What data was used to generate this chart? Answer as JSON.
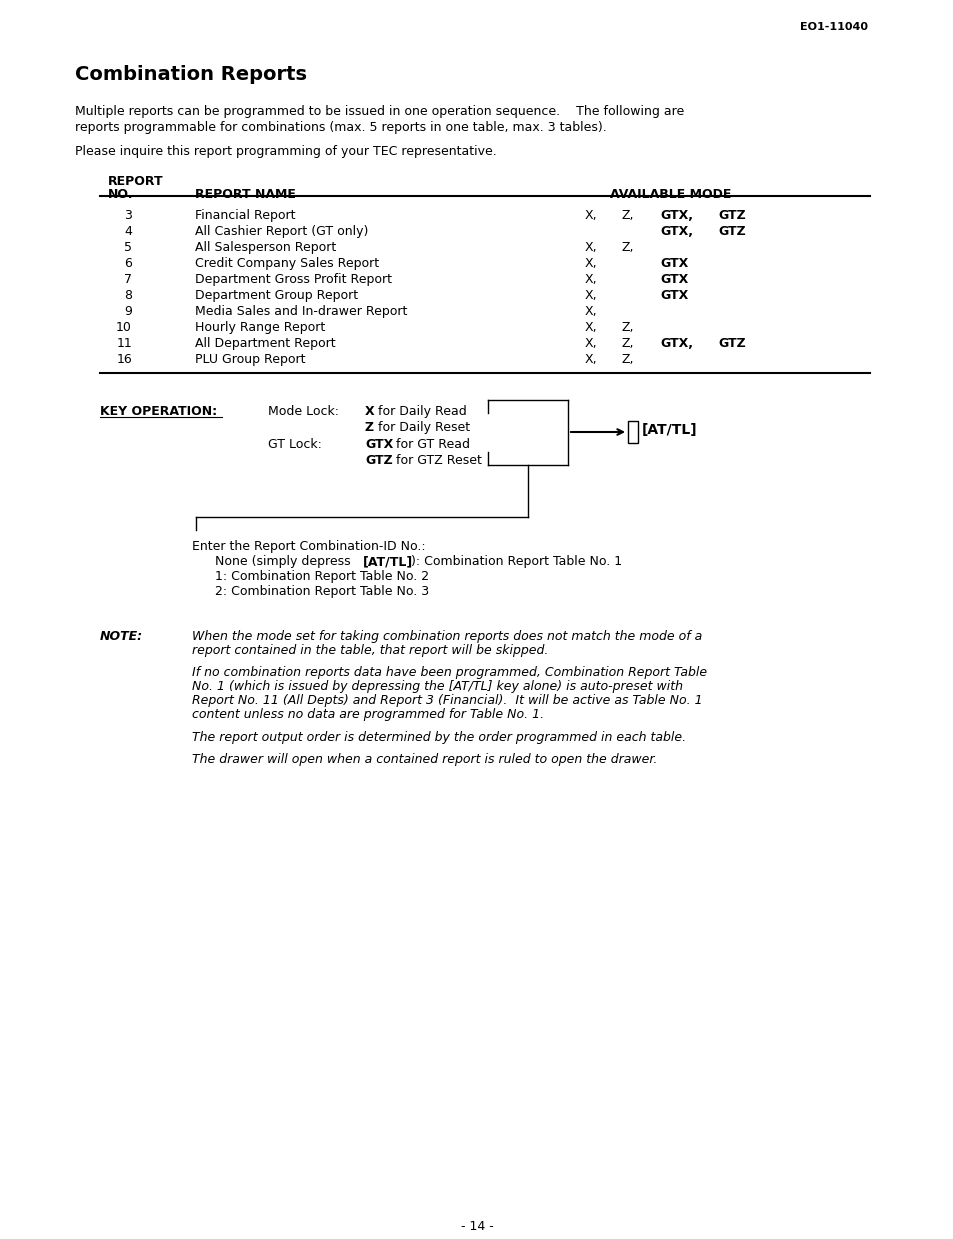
{
  "page_num": "EO1-11040",
  "title": "Combination Reports",
  "intro1": "Multiple reports can be programmed to be issued in one operation sequence.    The following are",
  "intro2": "reports programmable for combinations (max. 5 reports in one table, max. 3 tables).",
  "intro3": "Please inquire this report programming of your TEC representative.",
  "table_header_col1": "REPORT",
  "table_header_col2": "NO.",
  "table_header_col3": "REPORT NAME",
  "table_header_col4": "AVAILABLE MODE",
  "table_rows": [
    {
      "no": "3",
      "name": "Financial Report",
      "x": "X,",
      "z": "Z,",
      "gtx": "GTX,",
      "gtz": "GTZ"
    },
    {
      "no": "4",
      "name": "All Cashier Report (GT only)",
      "x": "",
      "z": "",
      "gtx": "GTX,",
      "gtz": "GTZ"
    },
    {
      "no": "5",
      "name": "All Salesperson Report",
      "x": "X,",
      "z": "Z,",
      "gtx": "",
      "gtz": ""
    },
    {
      "no": "6",
      "name": "Credit Company Sales Report",
      "x": "X,",
      "z": "",
      "gtx": "GTX",
      "gtz": ""
    },
    {
      "no": "7",
      "name": "Department Gross Profit Report",
      "x": "X,",
      "z": "",
      "gtx": "GTX",
      "gtz": ""
    },
    {
      "no": "8",
      "name": "Department Group Report",
      "x": "X,",
      "z": "",
      "gtx": "GTX",
      "gtz": ""
    },
    {
      "no": "9",
      "name": "Media Sales and In-drawer Report",
      "x": "X,",
      "z": "",
      "gtx": "",
      "gtz": ""
    },
    {
      "no": "10",
      "name": "Hourly Range Report",
      "x": "X,",
      "z": "Z,",
      "gtx": "",
      "gtz": ""
    },
    {
      "no": "11",
      "name": "All Department Report",
      "x": "X,",
      "z": "Z,",
      "gtx": "GTX,",
      "gtz": "GTZ"
    },
    {
      "no": "16",
      "name": "PLU Group Report",
      "x": "X,",
      "z": "Z,",
      "gtx": "",
      "gtz": ""
    }
  ],
  "key_op_label": "KEY OPERATION:",
  "mode_lock_label": "Mode Lock:",
  "mode_lock_line1_bold": "X",
  "mode_lock_line1_rest": " for Daily Read",
  "mode_lock_line2_bold": "Z",
  "mode_lock_line2_rest": " for Daily Reset",
  "gt_lock_label": "GT Lock:",
  "gt_lock_line1_bold": "GTX",
  "gt_lock_line1_rest": " for GT Read",
  "gt_lock_line2_bold": "GTZ",
  "gt_lock_line2_rest": " for GTZ Reset",
  "at_tl_label": "[AT/TL]",
  "enter_label": "Enter the Report Combination-ID No.:",
  "combo_line1_pre": "None (simply depress ",
  "combo_line1_bold": "[AT/TL]",
  "combo_line1_post": "): Combination Report Table No. 1",
  "combo_line2": "1: Combination Report Table No. 2",
  "combo_line3": "2: Combination Report Table No. 3",
  "note_label": "NOTE:",
  "note1_line1": "When the mode set for taking combination reports does not match the mode of a",
  "note1_line2": "report contained in the table, that report will be skipped.",
  "note2_line1": "If no combination reports data have been programmed, Combination Report Table",
  "note2_line2": "No. 1 (which is issued by depressing the [AT/TL] key alone) is auto-preset with",
  "note2_line3": "Report No. 11 (All Depts) and Report 3 (Financial).  It will be active as Table No. 1",
  "note2_line4": "content unless no data are programmed for Table No. 1.",
  "note3": "The report output order is determined by the order programmed in each table.",
  "note4": "The drawer will open when a contained report is ruled to open the drawer.",
  "page_footer": "- 14 -",
  "bg_color": "#ffffff",
  "text_color": "#000000"
}
